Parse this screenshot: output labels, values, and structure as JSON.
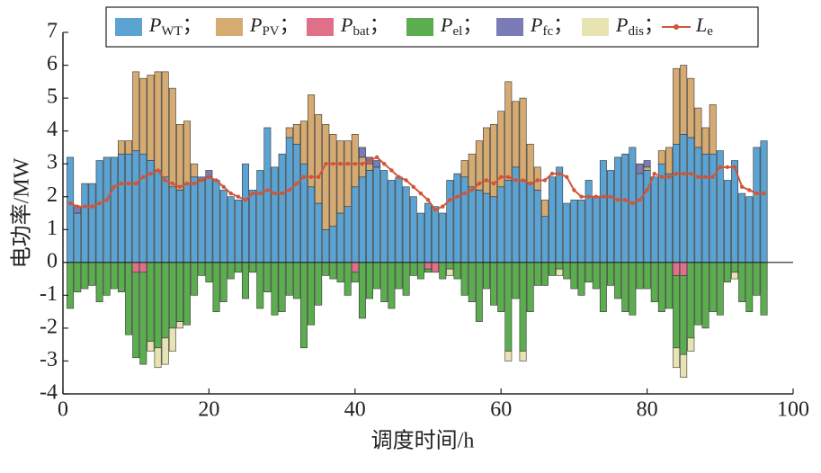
{
  "chart_data": {
    "type": "stacked-bar-line",
    "xlabel": "调度时间/h",
    "ylabel": "电功率/MW",
    "x": [
      1,
      2,
      3,
      4,
      5,
      6,
      7,
      8,
      9,
      10,
      11,
      12,
      13,
      14,
      15,
      16,
      17,
      18,
      19,
      20,
      21,
      22,
      23,
      24,
      25,
      26,
      27,
      28,
      29,
      30,
      31,
      32,
      33,
      34,
      35,
      36,
      37,
      38,
      39,
      40,
      41,
      42,
      43,
      44,
      45,
      46,
      47,
      48,
      49,
      50,
      51,
      52,
      53,
      54,
      55,
      56,
      57,
      58,
      59,
      60,
      61,
      62,
      63,
      64,
      65,
      66,
      67,
      68,
      69,
      70,
      71,
      72,
      73,
      74,
      75,
      76,
      77,
      78,
      79,
      80,
      81,
      82,
      83,
      84,
      85,
      86,
      87,
      88,
      89,
      90,
      91,
      92,
      93,
      94,
      95,
      96
    ],
    "xlim": [
      0,
      100
    ],
    "xticks": [
      0,
      20,
      40,
      60,
      80,
      100
    ],
    "ylim": [
      -4,
      7
    ],
    "yticks": [
      -4,
      -3,
      -2,
      -1,
      0,
      1,
      2,
      3,
      4,
      5,
      6,
      7
    ],
    "series": [
      {
        "name": "PWT；",
        "color": "#5ba3d2",
        "kind": "bar",
        "values": [
          3.2,
          1.5,
          2.4,
          2.4,
          3.1,
          3.2,
          3.2,
          3.3,
          3.3,
          3.4,
          3.3,
          3.1,
          2.8,
          2.6,
          2.3,
          2.2,
          2.4,
          2.6,
          2.5,
          2.6,
          2.5,
          2.2,
          2.0,
          1.9,
          3.0,
          2.2,
          2.8,
          4.1,
          2.9,
          3.3,
          3.8,
          3.6,
          3.0,
          2.3,
          1.8,
          1.0,
          1.1,
          1.5,
          1.7,
          2.3,
          2.6,
          2.8,
          2.9,
          2.8,
          2.5,
          2.6,
          2.3,
          2.0,
          1.5,
          1.8,
          1.7,
          1.5,
          2.5,
          2.7,
          2.6,
          2.3,
          2.2,
          2.1,
          2.0,
          2.3,
          2.5,
          2.9,
          2.5,
          2.4,
          2.2,
          1.4,
          2.6,
          2.9,
          1.8,
          1.9,
          1.9,
          2.5,
          2.0,
          3.1,
          2.8,
          3.2,
          3.3,
          3.5,
          2.7,
          2.8,
          2.6,
          3.0,
          2.7,
          3.6,
          3.9,
          3.8,
          3.5,
          3.3,
          3.3,
          3.4,
          2.5,
          3.1,
          2.1,
          2.0,
          3.5,
          3.7
        ]
      },
      {
        "name": "PPV；",
        "color": "#d6ab72",
        "kind": "bar",
        "values": [
          0,
          0,
          0,
          0,
          0,
          0,
          0,
          0.4,
          0.4,
          2.4,
          2.3,
          2.6,
          3.0,
          3.2,
          3.0,
          2.0,
          1.9,
          0.4,
          0,
          0,
          0,
          0,
          0,
          0,
          0,
          0,
          0,
          0,
          0,
          0,
          0.3,
          0.6,
          1.3,
          2.8,
          2.7,
          3.2,
          2.8,
          2.2,
          2.0,
          1.6,
          0.6,
          0.2,
          0,
          0,
          0,
          0,
          0,
          0,
          0,
          0,
          0,
          0,
          0,
          0,
          0.5,
          1.0,
          1.5,
          2.0,
          2.2,
          2.3,
          3.0,
          2.0,
          2.5,
          1.2,
          0.7,
          0.5,
          0,
          0,
          0,
          0,
          0,
          0,
          0,
          0,
          0,
          0,
          0,
          0,
          0,
          0.1,
          0,
          0.4,
          0.8,
          2.3,
          2.1,
          1.8,
          1.2,
          0.8,
          1.5,
          0,
          0,
          0,
          0,
          0,
          0,
          0
        ]
      },
      {
        "name": "Pbat；",
        "color": "#e0708a",
        "kind": "bar",
        "values": [
          0,
          0,
          0,
          0,
          0,
          0,
          0,
          0,
          0,
          -0.3,
          -0.3,
          0,
          0,
          0,
          0,
          0,
          0,
          0,
          0,
          0,
          0,
          0,
          0,
          0,
          0,
          0,
          0,
          0,
          0,
          0,
          0,
          0,
          0,
          0,
          0,
          0,
          0,
          0,
          0,
          -0.3,
          0,
          0,
          0,
          0,
          0,
          0,
          0,
          0,
          0,
          -0.2,
          -0.3,
          0,
          0,
          0,
          0,
          0,
          0,
          0,
          0,
          0,
          0,
          0,
          0,
          0,
          0,
          0,
          0,
          0,
          0,
          0,
          0,
          0,
          0,
          0,
          0,
          0,
          0,
          0,
          0,
          0,
          0,
          0,
          0,
          -0.4,
          -0.4,
          0,
          0,
          0,
          0,
          0,
          0,
          0,
          0,
          0,
          0,
          0
        ]
      },
      {
        "name": "Pel；",
        "color": "#5cad4f",
        "kind": "bar",
        "values": [
          -1.4,
          -0.9,
          -0.8,
          -0.7,
          -1.2,
          -1.0,
          -0.8,
          -0.9,
          -2.2,
          -2.6,
          -2.8,
          -2.4,
          -2.6,
          -2.3,
          -2.0,
          -1.8,
          -1.9,
          -1.0,
          -0.4,
          -0.6,
          -1.5,
          -1.2,
          -0.5,
          -0.3,
          -1.1,
          -0.3,
          -1.4,
          -0.9,
          -1.6,
          -1.5,
          -1.0,
          -1.1,
          -2.6,
          -1.9,
          -1.3,
          -0.4,
          -0.5,
          -0.6,
          -1.0,
          -0.3,
          -1.7,
          -1.1,
          -0.8,
          -1.2,
          -1.4,
          -0.8,
          -1.0,
          -0.4,
          -0.5,
          -0.1,
          0,
          -0.5,
          -0.2,
          -0.5,
          -1.0,
          -1.2,
          -1.8,
          -0.8,
          -1.3,
          -1.5,
          -2.7,
          -1.1,
          -2.7,
          -1.5,
          -0.7,
          -0.7,
          -0.4,
          -0.2,
          -0.5,
          -0.8,
          -1.0,
          -0.6,
          -0.8,
          -1.5,
          -0.7,
          -1.1,
          -1.5,
          -1.6,
          -0.8,
          -0.8,
          -1.2,
          -1.5,
          -1.4,
          -2.2,
          -2.4,
          -2.3,
          -1.9,
          -2.0,
          -1.5,
          -1.6,
          -0.6,
          -0.3,
          -1.2,
          -1.5,
          -1.0,
          -1.6
        ]
      },
      {
        "name": "Pfc；",
        "color": "#7b7bb8",
        "kind": "bar",
        "values": [
          0,
          0.2,
          0,
          0,
          0,
          0,
          0,
          0,
          0,
          0,
          0,
          0,
          0,
          0,
          0,
          0,
          0,
          0,
          0.1,
          0.2,
          0,
          0,
          0,
          0,
          0,
          0,
          0,
          0,
          0,
          0,
          0,
          0,
          0,
          0,
          0,
          0,
          0,
          0,
          0,
          0,
          0.3,
          0.2,
          0.2,
          0,
          0,
          0,
          0,
          0,
          0,
          0,
          0,
          0,
          0,
          0,
          0,
          0,
          0,
          0,
          0,
          0,
          0,
          0,
          0,
          0,
          0,
          0,
          0,
          0,
          0,
          0,
          0,
          0,
          0,
          0,
          0,
          0,
          0,
          0,
          0.3,
          0.2,
          0,
          0,
          0,
          0,
          0,
          0,
          0,
          0,
          0,
          0,
          0,
          0,
          0,
          0,
          0,
          0
        ]
      },
      {
        "name": "Pdis；",
        "color": "#e8e3b3",
        "kind": "bar",
        "values": [
          0,
          0,
          0,
          0,
          0,
          0,
          0,
          0,
          0,
          0,
          0,
          -0.3,
          -0.6,
          -0.8,
          -0.7,
          -0.2,
          0,
          0,
          0,
          0,
          0,
          0,
          0,
          0,
          0,
          0,
          0,
          0,
          0,
          0,
          0,
          0,
          0,
          0,
          0,
          0,
          0,
          0,
          0,
          0,
          0,
          0,
          0,
          0,
          0,
          0,
          0,
          0,
          0,
          0,
          0,
          0,
          -0.2,
          0,
          0,
          0,
          0,
          0,
          0,
          0,
          -0.3,
          0,
          -0.3,
          0,
          0,
          0,
          0,
          -0.2,
          0,
          0,
          0,
          0,
          0,
          0,
          0,
          0,
          0,
          0,
          0,
          0,
          0,
          0,
          0,
          -0.6,
          -0.7,
          -0.4,
          0,
          0,
          0,
          0,
          0,
          -0.2,
          0,
          0,
          0,
          0
        ]
      },
      {
        "name": "Le",
        "color": "#d0553a",
        "kind": "line",
        "values": [
          1.8,
          1.7,
          1.7,
          1.7,
          1.8,
          1.9,
          2.3,
          2.4,
          2.4,
          2.4,
          2.6,
          2.7,
          2.8,
          2.5,
          2.4,
          2.3,
          2.4,
          2.4,
          2.5,
          2.6,
          2.5,
          2.3,
          2.1,
          2.0,
          1.9,
          2.1,
          2.1,
          2.2,
          2.1,
          2.1,
          2.2,
          2.4,
          2.6,
          2.6,
          2.6,
          3.0,
          3.0,
          3.0,
          3.0,
          3.0,
          3.0,
          3.1,
          3.2,
          3.0,
          2.8,
          2.6,
          2.5,
          2.3,
          2.1,
          1.9,
          1.6,
          1.7,
          1.9,
          2.0,
          2.1,
          2.2,
          2.4,
          2.5,
          2.4,
          2.6,
          2.6,
          2.5,
          2.5,
          2.4,
          2.5,
          2.5,
          2.7,
          2.7,
          2.6,
          2.2,
          2.0,
          2.0,
          2.0,
          2.0,
          2.0,
          1.9,
          1.9,
          1.8,
          1.9,
          2.2,
          2.7,
          2.6,
          2.6,
          2.7,
          2.7,
          2.7,
          2.6,
          2.6,
          2.6,
          2.9,
          2.9,
          2.9,
          2.3,
          2.2,
          2.1,
          2.1
        ]
      }
    ]
  }
}
